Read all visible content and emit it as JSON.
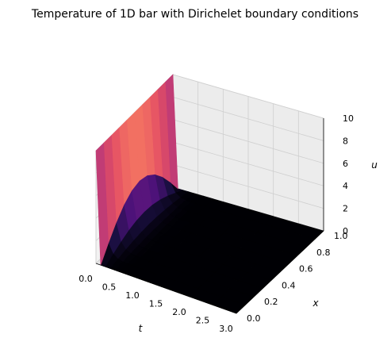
{
  "chart_data": {
    "type": "surface3d",
    "title": "Temperature of 1D bar with Dirichelet boundary conditions",
    "xlabel": "t",
    "ylabel": "x",
    "zlabel": "u",
    "t_ticks": [
      "0.0",
      "0.5",
      "1.0",
      "1.5",
      "2.0",
      "2.5",
      "3.0"
    ],
    "x_ticks": [
      "0.0",
      "0.2",
      "0.4",
      "0.6",
      "0.8",
      "1.0"
    ],
    "u_ticks": [
      "0",
      "2",
      "4",
      "6",
      "8",
      "10"
    ],
    "t_range": [
      0,
      3
    ],
    "x_range": [
      0,
      1
    ],
    "u_range": [
      0,
      10
    ],
    "grid": true,
    "colormap": "magma",
    "series": [
      {
        "t": [
          0.0,
          0.1,
          0.2,
          0.3,
          0.4,
          0.5,
          0.6,
          0.8,
          1.0,
          1.5,
          2.0,
          2.5,
          3.0
        ],
        "x": [
          0.0,
          0.1,
          0.2,
          0.3,
          0.4,
          0.5,
          0.6,
          0.7,
          0.8,
          0.9,
          1.0
        ],
        "u": [
          [
            10.0,
            10.0,
            10.0,
            10.0,
            10.0,
            10.0,
            10.0,
            10.0,
            10.0,
            10.0,
            10.0
          ],
          [
            0.0,
            1.27,
            2.41,
            3.32,
            3.9,
            4.1,
            3.9,
            3.32,
            2.41,
            1.27,
            0.0
          ],
          [
            0.0,
            0.46,
            0.87,
            1.2,
            1.41,
            1.48,
            1.41,
            1.2,
            0.87,
            0.46,
            0.0
          ],
          [
            0.0,
            0.17,
            0.32,
            0.44,
            0.52,
            0.55,
            0.52,
            0.44,
            0.32,
            0.17,
            0.0
          ],
          [
            0.0,
            0.06,
            0.12,
            0.16,
            0.19,
            0.2,
            0.19,
            0.16,
            0.12,
            0.06,
            0.0
          ],
          [
            0.0,
            0.02,
            0.04,
            0.06,
            0.07,
            0.07,
            0.07,
            0.06,
            0.04,
            0.02,
            0.0
          ],
          [
            0.0,
            0.01,
            0.02,
            0.02,
            0.03,
            0.03,
            0.03,
            0.02,
            0.02,
            0.01,
            0.0
          ],
          [
            0.0,
            0.0,
            0.0,
            0.0,
            0.0,
            0.0,
            0.0,
            0.0,
            0.0,
            0.0,
            0.0
          ],
          [
            0.0,
            0.0,
            0.0,
            0.0,
            0.0,
            0.0,
            0.0,
            0.0,
            0.0,
            0.0,
            0.0
          ],
          [
            0.0,
            0.0,
            0.0,
            0.0,
            0.0,
            0.0,
            0.0,
            0.0,
            0.0,
            0.0,
            0.0
          ],
          [
            0.0,
            0.0,
            0.0,
            0.0,
            0.0,
            0.0,
            0.0,
            0.0,
            0.0,
            0.0,
            0.0
          ],
          [
            0.0,
            0.0,
            0.0,
            0.0,
            0.0,
            0.0,
            0.0,
            0.0,
            0.0,
            0.0,
            0.0
          ],
          [
            0.0,
            0.0,
            0.0,
            0.0,
            0.0,
            0.0,
            0.0,
            0.0,
            0.0,
            0.0,
            0.0
          ]
        ]
      }
    ]
  }
}
